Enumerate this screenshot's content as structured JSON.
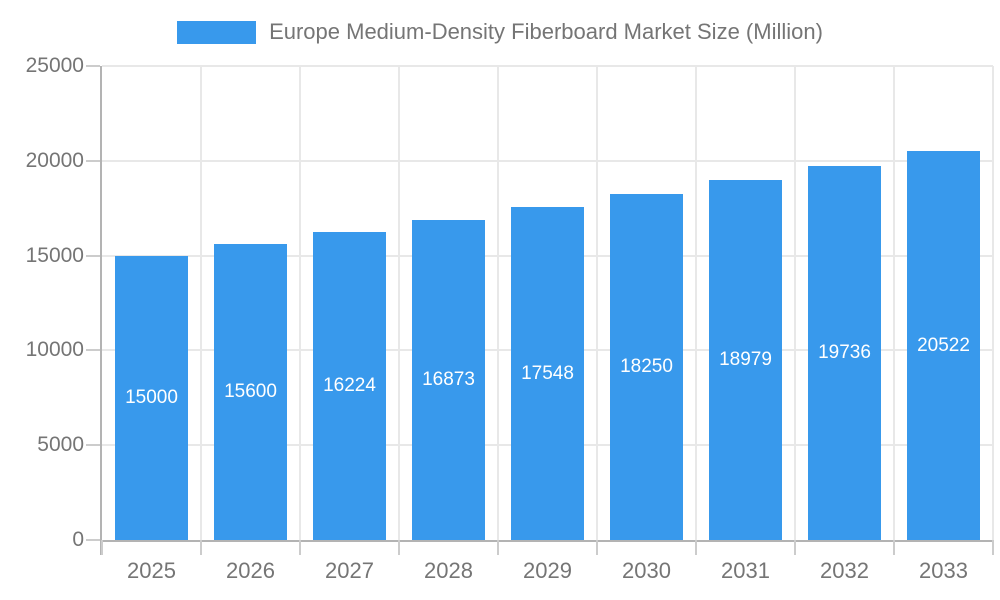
{
  "chart_data": {
    "type": "bar",
    "title": "Europe Medium-Density Fiberboard Market Size (Million)",
    "categories": [
      "2025",
      "2026",
      "2027",
      "2028",
      "2029",
      "2030",
      "2031",
      "2032",
      "2033"
    ],
    "values": [
      15000,
      15600,
      16224,
      16873,
      17548,
      18250,
      18979,
      19736,
      20522
    ],
    "xlabel": "",
    "ylabel": "",
    "ylim": [
      0,
      25000
    ],
    "y_ticks": [
      0,
      5000,
      10000,
      15000,
      20000,
      25000
    ],
    "grid": "horizontal-and-vertical",
    "legend_position": "top-center",
    "bar_value_labels": "centered-inside-white",
    "colors": {
      "bar": "#3899EC",
      "axis_line": "#B3B3B3",
      "grid_line": "#E8E8E8",
      "tick_line": "#CCCCCC",
      "axis_text": "#757575",
      "bar_label_text": "#FFFFFF",
      "background": "#FFFFFF"
    }
  }
}
